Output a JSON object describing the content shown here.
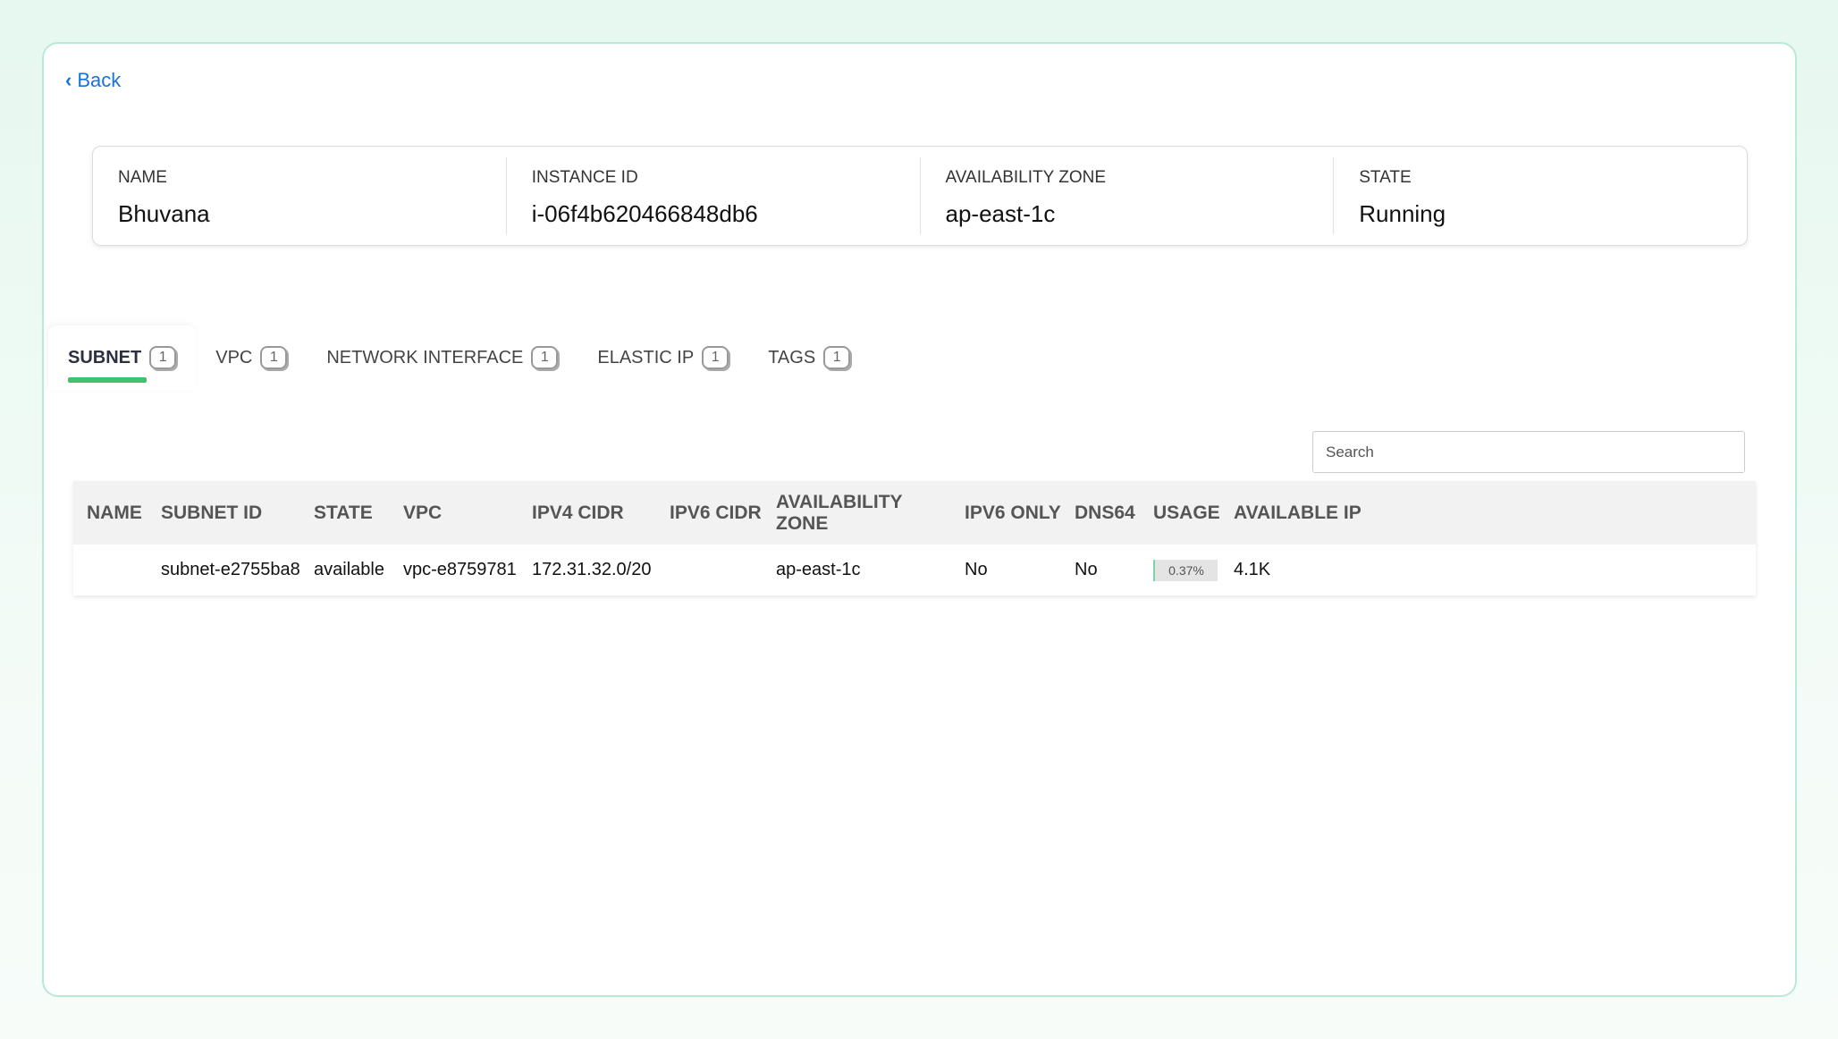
{
  "back_label": "Back",
  "info": [
    {
      "label": "NAME",
      "value": "Bhuvana"
    },
    {
      "label": "INSTANCE ID",
      "value": "i-06f4b620466848db6"
    },
    {
      "label": "AVAILABILITY ZONE",
      "value": "ap-east-1c"
    },
    {
      "label": "STATE",
      "value": "Running"
    }
  ],
  "tabs": [
    {
      "label": "SUBNET",
      "count": "1"
    },
    {
      "label": "VPC",
      "count": "1"
    },
    {
      "label": "NETWORK INTERFACE",
      "count": "1"
    },
    {
      "label": "ELASTIC IP",
      "count": "1"
    },
    {
      "label": "TAGS",
      "count": "1"
    }
  ],
  "active_tab": "SUBNET",
  "search": {
    "placeholder": "Search"
  },
  "table": {
    "headers": [
      "NAME",
      "SUBNET ID",
      "STATE",
      "VPC",
      "IPV4 CIDR",
      "IPV6 CIDR",
      "AVAILABILITY ZONE",
      "IPV6 ONLY",
      "DNS64",
      "USAGE",
      "AVAILABLE IP"
    ],
    "rows": [
      [
        "",
        "subnet-e2755ba8",
        "available",
        "vpc-e8759781",
        "172.31.32.0/20",
        "",
        "ap-east-1c",
        "No",
        "No",
        "0.37%",
        "4.1K"
      ]
    ]
  },
  "colors": {
    "accent": "#3fc26b",
    "link": "#1a73d9"
  }
}
